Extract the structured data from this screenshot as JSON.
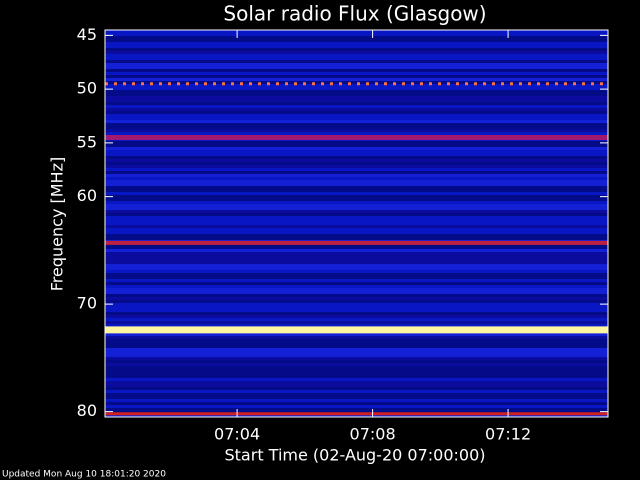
{
  "chart_data": {
    "type": "spectrogram",
    "title": "Solar radio Flux (Glasgow)",
    "xlabel": "Start Time (02-Aug-20 07:00:00)",
    "ylabel": "Frequency [MHz]",
    "footer": "Updated Mon Aug 10 18:01:20 2020",
    "xlim": [
      0.1,
      14.95
    ],
    "xticks": [
      {
        "value": 4,
        "label": "07:04"
      },
      {
        "value": 8,
        "label": "07:08"
      },
      {
        "value": 12,
        "label": "07:12"
      }
    ],
    "ylim": [
      44.5,
      80.5
    ],
    "y_inverted": true,
    "yticks": [
      45,
      50,
      55,
      60,
      70,
      80
    ],
    "background_color": "#1010b0",
    "bands": {
      "frequencies": [
        49.5,
        54.5,
        64.3,
        72.4,
        80.2
      ],
      "colors": [
        "#ff7040",
        "#a01870",
        "#c02040",
        "#fff4a0",
        "#d02020"
      ]
    }
  }
}
